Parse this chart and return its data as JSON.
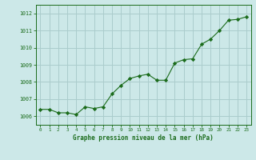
{
  "x": [
    0,
    1,
    2,
    3,
    4,
    5,
    6,
    7,
    8,
    9,
    10,
    11,
    12,
    13,
    14,
    15,
    16,
    17,
    18,
    19,
    20,
    21,
    22,
    23
  ],
  "y": [
    1006.4,
    1006.4,
    1006.2,
    1006.2,
    1006.1,
    1006.55,
    1006.45,
    1006.55,
    1007.3,
    1007.8,
    1008.2,
    1008.35,
    1008.45,
    1008.1,
    1008.1,
    1009.1,
    1009.3,
    1009.35,
    1010.2,
    1010.5,
    1011.0,
    1011.6,
    1011.65,
    1011.8
  ],
  "line_color": "#1a6b1a",
  "marker": "D",
  "marker_size": 2.2,
  "bg_color": "#cce8e8",
  "grid_color": "#aacccc",
  "xlabel": "Graphe pression niveau de la mer (hPa)",
  "xlabel_color": "#1a6b1a",
  "tick_color": "#1a6b1a",
  "ylim": [
    1005.5,
    1012.5
  ],
  "xlim": [
    -0.5,
    23.5
  ],
  "ytick_labels": [
    "1006",
    "1007",
    "1008",
    "1009",
    "1010",
    "1011",
    "1012"
  ],
  "yticks": [
    1006,
    1007,
    1008,
    1009,
    1010,
    1011,
    1012
  ],
  "xticks": [
    0,
    1,
    2,
    3,
    4,
    5,
    6,
    7,
    8,
    9,
    10,
    11,
    12,
    13,
    14,
    15,
    16,
    17,
    18,
    19,
    20,
    21,
    22,
    23
  ]
}
